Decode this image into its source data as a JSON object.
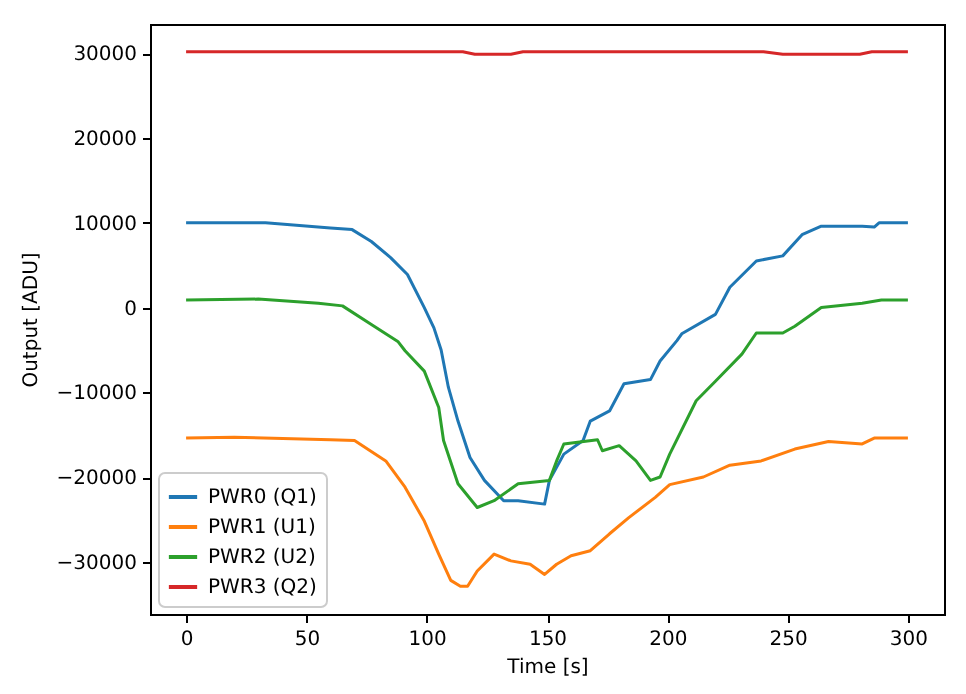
{
  "chart_data": {
    "type": "line",
    "xlabel": "Time [s]",
    "ylabel": "Output [ADU]",
    "xlim": [
      -15,
      315
    ],
    "ylim": [
      -36170,
      33470
    ],
    "xticks": [
      0,
      50,
      100,
      150,
      200,
      250,
      300
    ],
    "yticks": [
      -30000,
      -20000,
      -10000,
      0,
      10000,
      20000,
      30000
    ],
    "grid": false,
    "legend": "bottom left",
    "marker": "none",
    "line_style": "solid",
    "series": [
      {
        "name": "PWR0 (Q1)",
        "color": "#1f77b4",
        "x": [
          0,
          33,
          60,
          69,
          77,
          85,
          92,
          99,
          103,
          106,
          109,
          113,
          118,
          124,
          132,
          138,
          149,
          151,
          157,
          165,
          168,
          176,
          182,
          193,
          197,
          204,
          206,
          220,
          226,
          237,
          248,
          256,
          264,
          281,
          286,
          288,
          300
        ],
        "values": [
          10000,
          10000,
          9400,
          9200,
          7800,
          5900,
          3900,
          0,
          -2400,
          -5000,
          -9400,
          -13400,
          -17700,
          -20400,
          -22800,
          -22800,
          -23200,
          -20400,
          -17300,
          -15700,
          -13400,
          -12200,
          -9000,
          -8500,
          -6300,
          -3900,
          -3100,
          -800,
          2400,
          5500,
          6100,
          8600,
          9600,
          9600,
          9500,
          10000,
          10000
        ]
      },
      {
        "name": "PWR1 (U1)",
        "color": "#ff7f0e",
        "x": [
          0,
          20,
          60,
          70,
          83,
          91,
          99,
          105,
          110,
          114,
          117,
          121,
          128,
          135,
          143,
          149,
          154,
          160,
          168,
          176,
          184,
          195,
          201,
          215,
          226,
          239,
          253,
          267,
          281,
          286,
          300
        ],
        "values": [
          -15400,
          -15300,
          -15600,
          -15700,
          -18100,
          -21200,
          -25200,
          -29100,
          -32200,
          -32900,
          -32900,
          -31100,
          -29100,
          -29900,
          -30300,
          -31500,
          -30300,
          -29300,
          -28700,
          -26700,
          -24800,
          -22400,
          -20900,
          -20000,
          -18600,
          -18100,
          -16700,
          -15800,
          -16100,
          -15400,
          -15400
        ]
      },
      {
        "name": "PWR2 (U2)",
        "color": "#2ca02c",
        "x": [
          0,
          30,
          55,
          65,
          77,
          88,
          91,
          99,
          105,
          107,
          113,
          121,
          128,
          138,
          151,
          154,
          157,
          171,
          173,
          180,
          187,
          193,
          197,
          201,
          212,
          220,
          231,
          237,
          248,
          253,
          264,
          281,
          289,
          300
        ],
        "values": [
          900,
          1000,
          500,
          200,
          -2000,
          -4000,
          -5100,
          -7500,
          -11800,
          -15700,
          -20800,
          -23600,
          -22800,
          -20800,
          -20400,
          -18100,
          -16100,
          -15600,
          -16900,
          -16300,
          -18100,
          -20400,
          -20000,
          -17300,
          -11000,
          -8700,
          -5500,
          -3000,
          -3000,
          -2200,
          0,
          500,
          900,
          900
        ]
      },
      {
        "name": "PWR3 (Q2)",
        "color": "#d62728",
        "x": [
          0,
          60,
          115,
          120,
          135,
          140,
          200,
          240,
          248,
          280,
          285,
          300
        ],
        "values": [
          30200,
          30200,
          30200,
          29900,
          29900,
          30200,
          30200,
          30200,
          29900,
          29900,
          30200,
          30200
        ]
      }
    ]
  }
}
